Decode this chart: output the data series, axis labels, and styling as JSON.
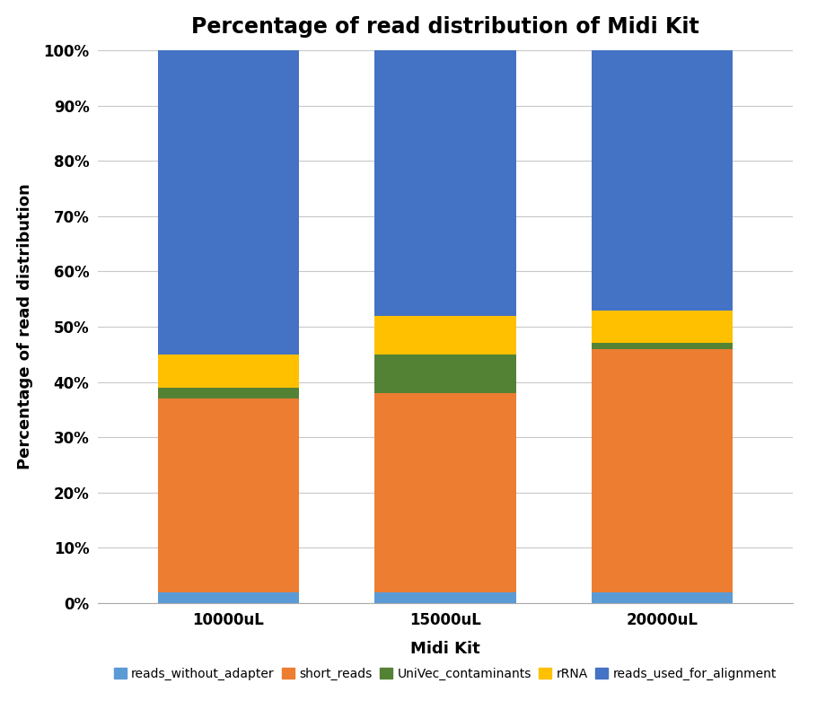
{
  "categories": [
    "10000uL",
    "15000uL",
    "20000uL"
  ],
  "title": "Percentage of read distribution of Midi Kit",
  "xlabel": "Midi Kit",
  "ylabel": "Percentage of read distribution",
  "series": {
    "reads_without_adapter": [
      2.0,
      2.0,
      2.0
    ],
    "short_reads": [
      35.0,
      36.0,
      44.0
    ],
    "UniVec_contaminants": [
      2.0,
      7.0,
      1.0
    ],
    "rRNA": [
      6.0,
      7.0,
      6.0
    ],
    "reads_used_for_alignment": [
      55.0,
      48.0,
      47.0
    ]
  },
  "colors": {
    "reads_without_adapter": "#5B9BD5",
    "short_reads": "#ED7D31",
    "UniVec_contaminants": "#548235",
    "rRNA": "#FFC000",
    "reads_used_for_alignment": "#4472C4"
  },
  "legend_labels": {
    "reads_without_adapter": "reads_without_adapter",
    "short_reads": "short_reads",
    "UniVec_contaminants": "UniVec_contaminants",
    "rRNA": "rRNA",
    "reads_used_for_alignment": "reads_used_for_alignment"
  },
  "legend_order": [
    "reads_without_adapter",
    "short_reads",
    "UniVec_contaminants",
    "rRNA",
    "reads_used_for_alignment"
  ],
  "ylim": [
    0,
    100
  ],
  "ytick_labels": [
    "0%",
    "10%",
    "20%",
    "30%",
    "40%",
    "50%",
    "60%",
    "70%",
    "80%",
    "90%",
    "100%"
  ],
  "ytick_values": [
    0,
    10,
    20,
    30,
    40,
    50,
    60,
    70,
    80,
    90,
    100
  ],
  "bar_width": 0.65,
  "background_color": "#FFFFFF",
  "grid_color": "#C8C8C8",
  "title_fontsize": 17,
  "axis_label_fontsize": 13,
  "tick_fontsize": 12,
  "legend_fontsize": 10
}
